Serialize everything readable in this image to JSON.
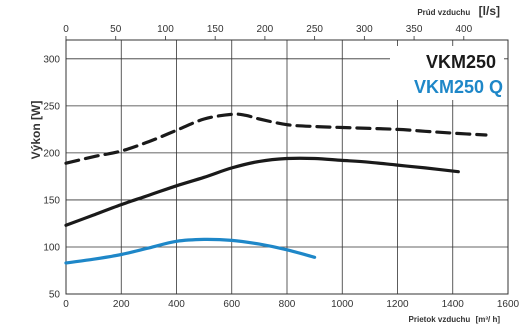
{
  "chart_data": {
    "type": "line",
    "title": "",
    "ylabel": "Výkon [W]",
    "xlabel_bottom": "Prietok vzduchu",
    "xlabel_bottom_unit": "[m³/ h]",
    "xlabel_top": "Prúd vzduchu",
    "xlabel_top_unit": "[l/s]",
    "xlim": [
      0,
      1600
    ],
    "ylim": [
      50,
      320
    ],
    "x_ticks": [
      0,
      200,
      400,
      600,
      800,
      1000,
      1200,
      1400,
      1600
    ],
    "x_tick_labels": [
      "0",
      "200",
      "400",
      "600",
      "800",
      "1000",
      "1200",
      "1400",
      "1600"
    ],
    "y_ticks": [
      50,
      100,
      150,
      200,
      250,
      300
    ],
    "y_tick_labels": [
      "50",
      "100",
      "150",
      "200",
      "250",
      "300"
    ],
    "top_ticks": [
      0,
      50,
      100,
      150,
      200,
      250,
      300,
      350,
      400
    ],
    "top_tick_labels": [
      "0",
      "50",
      "100",
      "150",
      "200",
      "250",
      "300",
      "350",
      "400"
    ],
    "grid": true,
    "legend": [
      {
        "label": "VKM250",
        "color": "#1a1a1a"
      },
      {
        "label": "VKM250 Q",
        "color": "#1e87c8"
      }
    ],
    "series": [
      {
        "style": "dashed",
        "color": "#1a1a1a",
        "x": [
          0,
          100,
          200,
          300,
          400,
          500,
          600,
          650,
          700,
          800,
          900,
          1000,
          1100,
          1200,
          1300,
          1400,
          1520
        ],
        "y": [
          189,
          196,
          202,
          212,
          224,
          236,
          241,
          240,
          236,
          230,
          228,
          227,
          226,
          225,
          223,
          221,
          219
        ]
      },
      {
        "style": "solid",
        "color": "#1a1a1a",
        "x": [
          0,
          100,
          200,
          300,
          400,
          500,
          600,
          700,
          800,
          900,
          1000,
          1100,
          1200,
          1300,
          1420
        ],
        "y": [
          123,
          134,
          145,
          155,
          165,
          174,
          184,
          191,
          194,
          194,
          192,
          190,
          187,
          184,
          180
        ]
      },
      {
        "style": "solid",
        "color": "#1e87c8",
        "x": [
          0,
          100,
          200,
          300,
          400,
          500,
          600,
          700,
          800,
          900
        ],
        "y": [
          83,
          87,
          92,
          99,
          106,
          108,
          107,
          103,
          97,
          89
        ]
      }
    ]
  }
}
